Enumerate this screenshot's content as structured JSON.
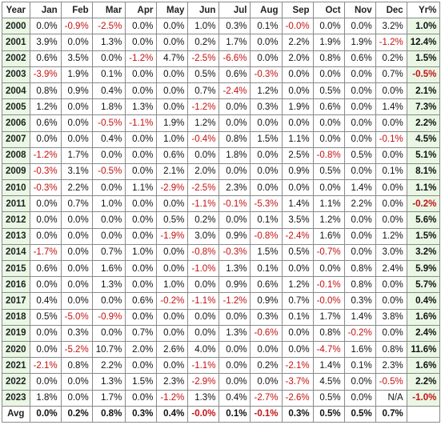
{
  "headers": [
    "Year",
    "Jan",
    "Feb",
    "Mar",
    "Apr",
    "May",
    "Jun",
    "Jul",
    "Aug",
    "Sep",
    "Oct",
    "Nov",
    "Dec",
    "Yr%"
  ],
  "rows": [
    {
      "year": "2000",
      "values": [
        "0.0%",
        "-0.9%",
        "-2.5%",
        "0.0%",
        "0.0%",
        "1.0%",
        "0.3%",
        "0.1%",
        "-0.0%",
        "0.0%",
        "0.0%",
        "3.2%"
      ],
      "yr": "1.0%"
    },
    {
      "year": "2001",
      "values": [
        "3.9%",
        "0.0%",
        "1.3%",
        "0.0%",
        "0.0%",
        "0.2%",
        "1.7%",
        "0.0%",
        "2.2%",
        "1.9%",
        "1.9%",
        "-1.2%"
      ],
      "yr": "12.4%"
    },
    {
      "year": "2002",
      "values": [
        "0.6%",
        "3.5%",
        "0.0%",
        "-1.2%",
        "4.7%",
        "-2.5%",
        "-6.6%",
        "0.0%",
        "2.0%",
        "0.8%",
        "0.6%",
        "0.2%"
      ],
      "yr": "1.5%"
    },
    {
      "year": "2003",
      "values": [
        "-3.9%",
        "1.9%",
        "0.1%",
        "0.0%",
        "0.0%",
        "0.5%",
        "0.6%",
        "-0.3%",
        "0.0%",
        "0.0%",
        "0.0%",
        "0.7%"
      ],
      "yr": "-0.5%"
    },
    {
      "year": "2004",
      "values": [
        "0.8%",
        "0.9%",
        "0.4%",
        "0.0%",
        "0.0%",
        "0.7%",
        "-2.4%",
        "1.2%",
        "0.0%",
        "0.5%",
        "0.0%",
        "0.0%"
      ],
      "yr": "2.1%"
    },
    {
      "year": "2005",
      "values": [
        "1.2%",
        "0.0%",
        "1.8%",
        "1.3%",
        "0.0%",
        "-1.2%",
        "0.0%",
        "0.3%",
        "1.9%",
        "0.6%",
        "0.0%",
        "1.4%"
      ],
      "yr": "7.3%"
    },
    {
      "year": "2006",
      "values": [
        "0.6%",
        "0.0%",
        "-0.5%",
        "-1.1%",
        "1.9%",
        "1.2%",
        "0.0%",
        "0.0%",
        "0.0%",
        "0.0%",
        "0.0%",
        "0.0%"
      ],
      "yr": "2.2%"
    },
    {
      "year": "2007",
      "values": [
        "0.0%",
        "0.0%",
        "0.4%",
        "0.0%",
        "1.0%",
        "-0.4%",
        "0.8%",
        "1.5%",
        "1.1%",
        "0.0%",
        "0.0%",
        "-0.1%"
      ],
      "yr": "4.5%"
    },
    {
      "year": "2008",
      "values": [
        "-1.2%",
        "1.7%",
        "0.0%",
        "0.0%",
        "0.6%",
        "0.0%",
        "1.8%",
        "0.0%",
        "2.5%",
        "-0.8%",
        "0.5%",
        "0.0%"
      ],
      "yr": "5.1%"
    },
    {
      "year": "2009",
      "values": [
        "-0.3%",
        "3.1%",
        "-0.5%",
        "0.0%",
        "2.1%",
        "2.0%",
        "0.0%",
        "0.0%",
        "0.9%",
        "0.5%",
        "0.0%",
        "0.1%"
      ],
      "yr": "8.1%"
    },
    {
      "year": "2010",
      "values": [
        "-0.3%",
        "2.2%",
        "0.0%",
        "1.1%",
        "-2.9%",
        "-2.5%",
        "2.3%",
        "0.0%",
        "0.0%",
        "0.0%",
        "1.4%",
        "0.0%"
      ],
      "yr": "1.1%"
    },
    {
      "year": "2011",
      "values": [
        "0.0%",
        "0.7%",
        "1.0%",
        "0.0%",
        "0.0%",
        "-1.1%",
        "-0.1%",
        "-5.3%",
        "1.4%",
        "1.1%",
        "2.2%",
        "0.0%"
      ],
      "yr": "-0.2%"
    },
    {
      "year": "2012",
      "values": [
        "0.0%",
        "0.0%",
        "0.0%",
        "0.0%",
        "0.5%",
        "0.2%",
        "0.0%",
        "0.1%",
        "3.5%",
        "1.2%",
        "0.0%",
        "0.0%"
      ],
      "yr": "5.6%"
    },
    {
      "year": "2013",
      "values": [
        "0.0%",
        "0.0%",
        "0.0%",
        "0.0%",
        "-1.9%",
        "3.0%",
        "0.9%",
        "-0.8%",
        "-2.4%",
        "1.6%",
        "0.0%",
        "1.2%"
      ],
      "yr": "1.5%"
    },
    {
      "year": "2014",
      "values": [
        "-1.7%",
        "0.0%",
        "0.7%",
        "1.0%",
        "0.0%",
        "-0.8%",
        "-0.3%",
        "1.5%",
        "0.5%",
        "-0.7%",
        "0.0%",
        "3.0%"
      ],
      "yr": "3.2%"
    },
    {
      "year": "2015",
      "values": [
        "0.6%",
        "0.0%",
        "1.6%",
        "0.0%",
        "0.0%",
        "-1.0%",
        "1.3%",
        "0.1%",
        "0.0%",
        "0.0%",
        "0.8%",
        "2.4%"
      ],
      "yr": "5.9%"
    },
    {
      "year": "2016",
      "values": [
        "0.0%",
        "0.0%",
        "1.3%",
        "0.0%",
        "1.0%",
        "0.0%",
        "0.9%",
        "0.6%",
        "1.2%",
        "-0.1%",
        "0.8%",
        "0.0%"
      ],
      "yr": "5.7%"
    },
    {
      "year": "2017",
      "values": [
        "0.4%",
        "0.0%",
        "0.0%",
        "0.6%",
        "-0.2%",
        "-1.1%",
        "-1.2%",
        "0.9%",
        "0.7%",
        "-0.0%",
        "0.3%",
        "0.0%"
      ],
      "yr": "0.4%"
    },
    {
      "year": "2018",
      "values": [
        "0.5%",
        "-5.0%",
        "-0.9%",
        "0.0%",
        "0.0%",
        "0.0%",
        "0.0%",
        "0.3%",
        "0.1%",
        "1.7%",
        "1.4%",
        "3.8%"
      ],
      "yr": "1.6%"
    },
    {
      "year": "2019",
      "values": [
        "0.0%",
        "0.3%",
        "0.0%",
        "0.7%",
        "0.0%",
        "0.0%",
        "1.3%",
        "-0.6%",
        "0.0%",
        "0.8%",
        "-0.2%",
        "0.0%"
      ],
      "yr": "2.4%"
    },
    {
      "year": "2020",
      "values": [
        "0.0%",
        "-5.2%",
        "10.7%",
        "2.0%",
        "2.6%",
        "4.0%",
        "0.0%",
        "0.0%",
        "0.0%",
        "-4.7%",
        "1.6%",
        "0.8%"
      ],
      "yr": "11.6%"
    },
    {
      "year": "2021",
      "values": [
        "-2.1%",
        "0.8%",
        "2.2%",
        "0.0%",
        "0.0%",
        "-1.1%",
        "0.0%",
        "0.2%",
        "-2.1%",
        "1.4%",
        "0.1%",
        "2.3%"
      ],
      "yr": "1.6%"
    },
    {
      "year": "2022",
      "values": [
        "0.0%",
        "0.0%",
        "1.3%",
        "1.5%",
        "2.3%",
        "-2.9%",
        "0.0%",
        "0.0%",
        "-3.7%",
        "4.5%",
        "0.0%",
        "-0.5%"
      ],
      "yr": "2.2%"
    },
    {
      "year": "2023",
      "values": [
        "1.8%",
        "0.0%",
        "1.7%",
        "0.0%",
        "-1.2%",
        "1.3%",
        "0.4%",
        "-2.7%",
        "-2.6%",
        "0.5%",
        "0.0%",
        "N/A"
      ],
      "yr": "-1.0%"
    }
  ],
  "avg": {
    "label": "Avg",
    "values": [
      "0.0%",
      "0.2%",
      "0.8%",
      "0.3%",
      "0.4%",
      "-0.0%",
      "0.1%",
      "-0.1%",
      "0.3%",
      "0.5%",
      "0.5%",
      "0.7%"
    ],
    "yr": ""
  },
  "colors": {
    "negative": "#c41212",
    "positive": "#111111",
    "label_bg": "#e9f7e4",
    "grid": "#8a8a8a"
  }
}
